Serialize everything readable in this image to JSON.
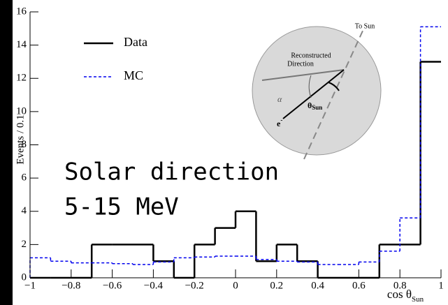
{
  "chart_data": {
    "type": "histogram",
    "ylabel": "Events / 0.1",
    "xlabel": "cos θ",
    "xlabel_sub": "Sun",
    "bins": [
      -1,
      -0.9,
      -0.8,
      -0.7,
      -0.6,
      -0.5,
      -0.4,
      -0.3,
      -0.2,
      -0.1,
      0,
      0.1,
      0.2,
      0.3,
      0.4,
      0.5,
      0.6,
      0.7,
      0.8,
      0.9,
      1
    ],
    "series": [
      {
        "name": "Data",
        "color": "#000000",
        "style": "solid",
        "values": [
          0,
          0,
          0,
          2,
          2,
          2,
          1,
          0,
          2,
          3,
          4,
          1,
          2,
          1,
          0,
          0,
          0,
          2,
          2,
          13
        ]
      },
      {
        "name": "MC",
        "color": "#0000ee",
        "style": "dashed",
        "values": [
          1.2,
          1.0,
          0.9,
          0.9,
          0.85,
          0.8,
          0.95,
          1.2,
          1.25,
          1.3,
          1.3,
          1.1,
          1.0,
          0.95,
          0.8,
          0.8,
          0.95,
          1.6,
          3.6,
          15.1
        ]
      }
    ],
    "xlim": [
      -1,
      1
    ],
    "ylim": [
      0,
      16
    ],
    "xticks": [
      {
        "value": -1,
        "label": "−1"
      },
      {
        "value": -0.8,
        "label": "−0.8"
      },
      {
        "value": -0.6,
        "label": "−0.6"
      },
      {
        "value": -0.4,
        "label": "−0.4"
      },
      {
        "value": -0.2,
        "label": "−0.2"
      },
      0,
      0.2,
      0.4,
      0.6,
      0.8,
      1
    ],
    "yticks": [
      0,
      2,
      4,
      6,
      8,
      10,
      12,
      14,
      16
    ],
    "legend": "upper left",
    "annotations": [
      "Solar direction",
      "5-15 MeV"
    ],
    "inset": {
      "to_sun": "To Sun",
      "reconstructed": [
        "Reconstructed",
        "Direction"
      ],
      "alpha": "α",
      "theta": "θ",
      "theta_sub": "Sun",
      "electron": "e",
      "electron_sup": "-"
    }
  }
}
